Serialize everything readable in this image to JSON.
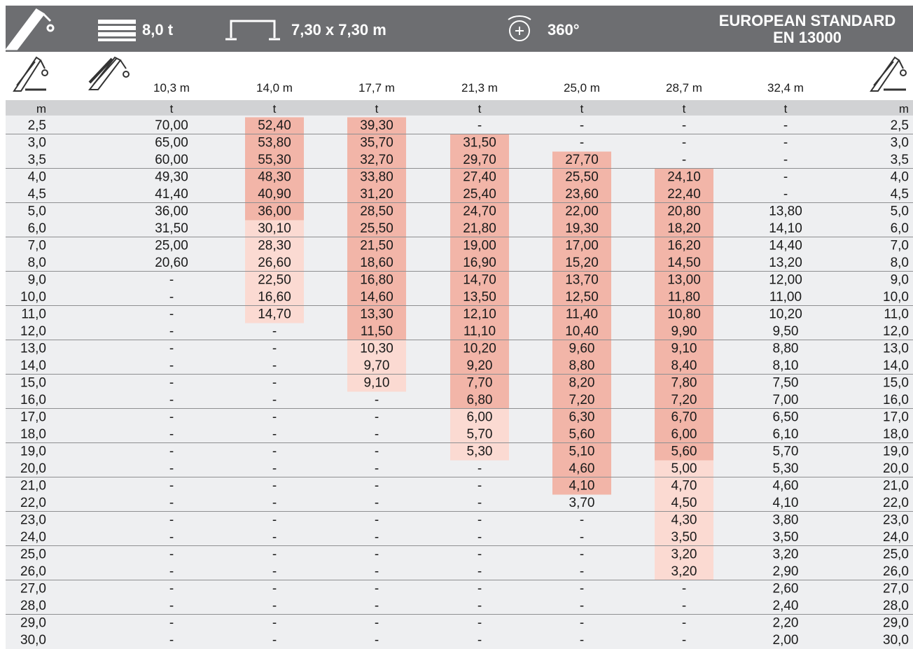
{
  "header": {
    "load": "8,0 t",
    "outrigger": "7,30 x 7,30 m",
    "rotation": "360°",
    "standard": [
      "EUROPEAN STANDARD",
      "EN 13000"
    ]
  },
  "table": {
    "boom_lengths": [
      "10,3 m",
      "14,0 m",
      "17,7 m",
      "21,3 m",
      "25,0 m",
      "28,7 m",
      "32,4 m"
    ],
    "units": [
      "m",
      "t",
      "t",
      "t",
      "t",
      "t",
      "t",
      "t",
      "m"
    ],
    "radius": [
      "2,5",
      "3,0",
      "3,5",
      "4,0",
      "4,5",
      "5,0",
      "6,0",
      "7,0",
      "8,0",
      "9,0",
      "10,0",
      "11,0",
      "12,0",
      "13,0",
      "14,0",
      "15,0",
      "16,0",
      "17,0",
      "18,0",
      "19,0",
      "20,0",
      "21,0",
      "22,0",
      "23,0",
      "24,0",
      "25,0",
      "26,0",
      "27,0",
      "28,0",
      "29,0",
      "30,0"
    ],
    "rows": [
      [
        "70,00",
        "52,40",
        "39,30",
        "-",
        "-",
        "-",
        "-"
      ],
      [
        "65,00",
        "53,80",
        "35,70",
        "31,50",
        "-",
        "-",
        "-"
      ],
      [
        "60,00",
        "55,30",
        "32,70",
        "29,70",
        "27,70",
        "-",
        "-"
      ],
      [
        "49,30",
        "48,30",
        "33,80",
        "27,40",
        "25,50",
        "24,10",
        "-"
      ],
      [
        "41,40",
        "40,90",
        "31,20",
        "25,40",
        "23,60",
        "22,40",
        "-"
      ],
      [
        "36,00",
        "36,00",
        "28,50",
        "24,70",
        "22,00",
        "20,80",
        "13,80"
      ],
      [
        "31,50",
        "30,10",
        "25,50",
        "21,80",
        "19,30",
        "18,20",
        "14,10"
      ],
      [
        "25,00",
        "28,30",
        "21,50",
        "19,00",
        "17,00",
        "16,20",
        "14,40"
      ],
      [
        "20,60",
        "26,60",
        "18,60",
        "16,90",
        "15,20",
        "14,50",
        "13,20"
      ],
      [
        "-",
        "22,50",
        "16,80",
        "14,70",
        "13,70",
        "13,00",
        "12,00"
      ],
      [
        "-",
        "16,60",
        "14,60",
        "13,50",
        "12,50",
        "11,80",
        "11,00"
      ],
      [
        "-",
        "14,70",
        "13,30",
        "12,10",
        "11,40",
        "10,80",
        "10,20"
      ],
      [
        "-",
        "-",
        "11,50",
        "11,10",
        "10,40",
        "9,90",
        "9,50"
      ],
      [
        "-",
        "-",
        "10,30",
        "10,20",
        "9,60",
        "9,10",
        "8,80"
      ],
      [
        "-",
        "-",
        "9,70",
        "9,20",
        "8,80",
        "8,40",
        "8,10"
      ],
      [
        "-",
        "-",
        "9,10",
        "7,70",
        "8,20",
        "7,80",
        "7,50"
      ],
      [
        "-",
        "-",
        "-",
        "6,80",
        "7,20",
        "7,20",
        "7,00"
      ],
      [
        "-",
        "-",
        "-",
        "6,00",
        "6,30",
        "6,70",
        "6,50"
      ],
      [
        "-",
        "-",
        "-",
        "5,70",
        "5,60",
        "6,00",
        "6,10"
      ],
      [
        "-",
        "-",
        "-",
        "5,30",
        "5,10",
        "5,60",
        "5,70"
      ],
      [
        "-",
        "-",
        "-",
        "-",
        "4,60",
        "5,00",
        "5,30"
      ],
      [
        "-",
        "-",
        "-",
        "-",
        "4,10",
        "4,70",
        "4,60"
      ],
      [
        "-",
        "-",
        "-",
        "-",
        "3,70",
        "4,50",
        "4,10"
      ],
      [
        "-",
        "-",
        "-",
        "-",
        "-",
        "4,30",
        "3,80"
      ],
      [
        "-",
        "-",
        "-",
        "-",
        "-",
        "3,50",
        "3,50"
      ],
      [
        "-",
        "-",
        "-",
        "-",
        "-",
        "3,20",
        "3,20"
      ],
      [
        "-",
        "-",
        "-",
        "-",
        "-",
        "3,20",
        "2,90"
      ],
      [
        "-",
        "-",
        "-",
        "-",
        "-",
        "-",
        "2,60"
      ],
      [
        "-",
        "-",
        "-",
        "-",
        "-",
        "-",
        "2,40"
      ],
      [
        "-",
        "-",
        "-",
        "-",
        "-",
        "-",
        "2,20"
      ],
      [
        "-",
        "-",
        "-",
        "-",
        "-",
        "-",
        "2,00"
      ]
    ],
    "cell_colors": [
      [
        null,
        "#f2b5a8",
        "#f2b5a8",
        null,
        null,
        null,
        null
      ],
      [
        null,
        "#f2b5a8",
        "#f2b5a8",
        "#f2b5a8",
        null,
        null,
        null
      ],
      [
        null,
        "#f2b5a8",
        "#f2b5a8",
        "#f2b5a8",
        "#f2b5a8",
        null,
        null
      ],
      [
        null,
        "#f2b5a8",
        "#f2b5a8",
        "#f2b5a8",
        "#f2b5a8",
        "#f2b5a8",
        null
      ],
      [
        null,
        "#f2b5a8",
        "#f2b5a8",
        "#f2b5a8",
        "#f2b5a8",
        "#f2b5a8",
        null
      ],
      [
        null,
        "#f2b5a8",
        "#f2b5a8",
        "#f2b5a8",
        "#f2b5a8",
        "#f2b5a8",
        null
      ],
      [
        null,
        "#fbdad2",
        "#f2b5a8",
        "#f2b5a8",
        "#f2b5a8",
        "#f2b5a8",
        null
      ],
      [
        null,
        "#fbdad2",
        "#f2b5a8",
        "#f2b5a8",
        "#f2b5a8",
        "#f2b5a8",
        null
      ],
      [
        null,
        "#fbdad2",
        "#f2b5a8",
        "#f2b5a8",
        "#f2b5a8",
        "#f2b5a8",
        null
      ],
      [
        null,
        "#fbdad2",
        "#f2b5a8",
        "#f2b5a8",
        "#f2b5a8",
        "#f2b5a8",
        null
      ],
      [
        null,
        "#fbdad2",
        "#f2b5a8",
        "#f2b5a8",
        "#f2b5a8",
        "#f2b5a8",
        null
      ],
      [
        null,
        "#fbdad2",
        "#f2b5a8",
        "#f2b5a8",
        "#f2b5a8",
        "#f2b5a8",
        null
      ],
      [
        null,
        null,
        "#f2b5a8",
        "#f2b5a8",
        "#f2b5a8",
        "#f2b5a8",
        null
      ],
      [
        null,
        null,
        "#fbdad2",
        "#f2b5a8",
        "#f2b5a8",
        "#f2b5a8",
        null
      ],
      [
        null,
        null,
        "#fbdad2",
        "#f2b5a8",
        "#f2b5a8",
        "#f2b5a8",
        null
      ],
      [
        null,
        null,
        "#fbdad2",
        "#f2b5a8",
        "#f2b5a8",
        "#f2b5a8",
        null
      ],
      [
        null,
        null,
        null,
        "#f2b5a8",
        "#f2b5a8",
        "#f2b5a8",
        null
      ],
      [
        null,
        null,
        null,
        "#fbdad2",
        "#f2b5a8",
        "#f2b5a8",
        null
      ],
      [
        null,
        null,
        null,
        "#fbdad2",
        "#f2b5a8",
        "#f2b5a8",
        null
      ],
      [
        null,
        null,
        null,
        "#fbdad2",
        "#f2b5a8",
        "#f2b5a8",
        null
      ],
      [
        null,
        null,
        null,
        null,
        "#f2b5a8",
        "#fbdad2",
        null
      ],
      [
        null,
        null,
        null,
        null,
        "#f2b5a8",
        "#fbdad2",
        null
      ],
      [
        null,
        null,
        null,
        null,
        null,
        "#fbdad2",
        null
      ],
      [
        null,
        null,
        null,
        null,
        null,
        "#fbdad2",
        null
      ],
      [
        null,
        null,
        null,
        null,
        null,
        "#fbdad2",
        null
      ],
      [
        null,
        null,
        null,
        null,
        null,
        "#fbdad2",
        null
      ],
      [
        null,
        null,
        null,
        null,
        null,
        "#fbdad2",
        null
      ],
      [
        null,
        null,
        null,
        null,
        null,
        null,
        null
      ],
      [
        null,
        null,
        null,
        null,
        null,
        null,
        null
      ],
      [
        null,
        null,
        null,
        null,
        null,
        null,
        null
      ],
      [
        null,
        null,
        null,
        null,
        null,
        null,
        null
      ]
    ]
  }
}
